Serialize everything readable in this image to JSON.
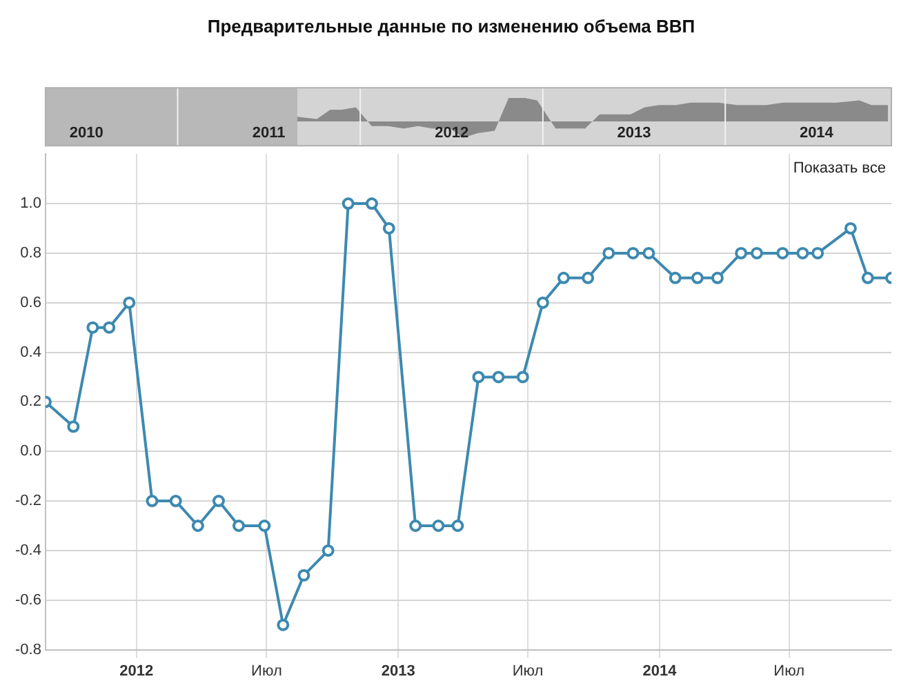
{
  "chart_data": {
    "type": "line",
    "title": "Предварительные данные по изменению объема ВВП",
    "annotations": [
      "Показать все"
    ],
    "x": [
      "2011-08-27",
      "2011-10-05",
      "2011-11-01",
      "2011-11-24",
      "2011-12-22",
      "2012-01-23",
      "2012-02-25",
      "2012-03-27",
      "2012-04-25",
      "2012-05-23",
      "2012-06-28",
      "2012-07-24",
      "2012-08-22",
      "2012-09-25",
      "2012-10-23",
      "2012-11-25",
      "2012-12-19",
      "2013-01-25",
      "2013-02-26",
      "2013-03-25",
      "2013-04-23",
      "2013-05-21",
      "2013-06-24",
      "2013-07-22",
      "2013-08-20",
      "2013-09-23",
      "2013-10-22",
      "2013-11-25",
      "2013-12-17",
      "2014-01-23",
      "2014-02-23",
      "2014-03-23",
      "2014-04-25",
      "2014-05-17",
      "2014-06-22",
      "2014-07-20",
      "2014-08-10",
      "2014-09-25",
      "2014-10-19",
      "2014-11-21"
    ],
    "series": [
      {
        "color": "#3d89b0",
        "values": [
          0.2,
          0.1,
          0.5,
          0.5,
          0.6,
          -0.2,
          -0.2,
          -0.3,
          -0.2,
          -0.3,
          -0.3,
          -0.7,
          -0.5,
          -0.4,
          1.0,
          1.0,
          0.9,
          -0.3,
          -0.3,
          -0.3,
          0.3,
          0.3,
          0.3,
          0.6,
          0.7,
          0.7,
          0.8,
          0.8,
          0.8,
          0.7,
          0.7,
          0.7,
          0.8,
          0.8,
          0.8,
          0.8,
          0.8,
          0.9,
          0.7,
          0.7
        ]
      }
    ],
    "xlim": [
      "2011-08-27",
      "2014-11-21"
    ],
    "xticks": [
      {
        "value": "2012-01-01",
        "label": "2012"
      },
      {
        "value": "2012-07-01",
        "label": "Июл"
      },
      {
        "value": "2013-01-01",
        "label": "2013"
      },
      {
        "value": "2013-07-01",
        "label": "Июл"
      },
      {
        "value": "2014-01-01",
        "label": "2014"
      },
      {
        "value": "2014-07-01",
        "label": "Июл"
      }
    ],
    "ylim": [
      -0.8,
      1.2
    ],
    "yticks": [
      -0.8,
      -0.6,
      -0.4,
      -0.2,
      {
        "value": 0,
        "label": "0.0"
      },
      0.2,
      0.4,
      0.6,
      0.8,
      {
        "value": 1,
        "label": "1.0"
      }
    ],
    "x2lim": [
      "2010-04-10",
      "2014-11-28"
    ],
    "x2ticks": [
      {
        "value": "2010-07-01",
        "label": "2010"
      },
      {
        "value": "2011-07-01",
        "label": "2011"
      },
      {
        "value": "2012-07-01",
        "label": "2012"
      },
      {
        "value": "2013-07-01",
        "label": "2013"
      },
      {
        "value": "2014-07-01",
        "label": "2014"
      }
    ],
    "grid": true,
    "legend": false,
    "marker": "circle",
    "line_style": "solid"
  }
}
